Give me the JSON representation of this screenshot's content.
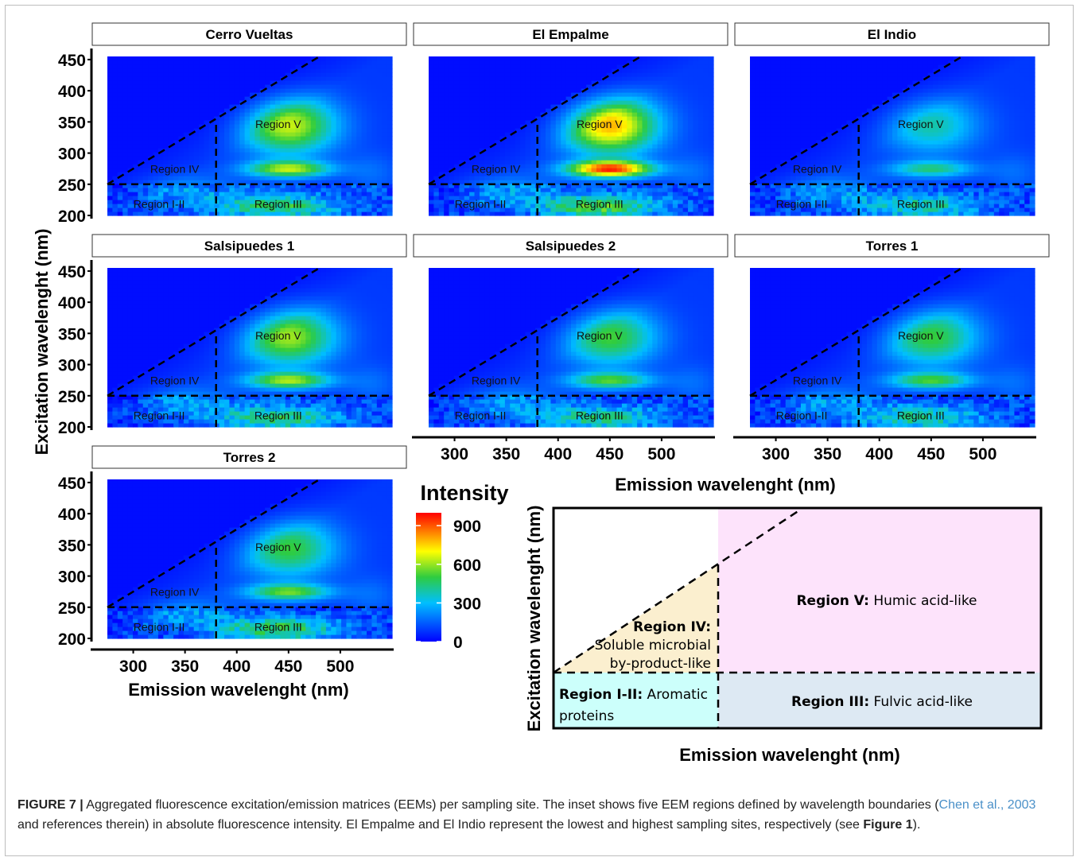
{
  "chart_data": [
    {
      "type": "heatmap",
      "panels": [
        {
          "title": "Cerro Vueltas",
          "peak_v": 560,
          "peak_low": 520,
          "peak_iii": 380
        },
        {
          "title": "El Empalme",
          "peak_v": 700,
          "peak_low": 830,
          "peak_iii": 430
        },
        {
          "title": "El Indio",
          "peak_v": 300,
          "peak_low": 330,
          "peak_iii": 320
        },
        {
          "title": "Salsipuedes 1",
          "peak_v": 520,
          "peak_low": 500,
          "peak_iii": 360
        },
        {
          "title": "Salsipuedes 2",
          "peak_v": 430,
          "peak_low": 420,
          "peak_iii": 320
        },
        {
          "title": "Torres 1",
          "peak_v": 420,
          "peak_low": 410,
          "peak_iii": 320
        },
        {
          "title": "Torres 2",
          "peak_v": 420,
          "peak_low": 450,
          "peak_iii": 400
        }
      ],
      "x_ticks": [
        300,
        350,
        400,
        450,
        500
      ],
      "y_ticks": [
        200,
        250,
        300,
        350,
        400,
        450
      ],
      "xlim": [
        275,
        550
      ],
      "ylim": [
        200,
        455
      ],
      "xlabel": "Emission wavelenght (nm)",
      "ylabel": "Excitation wavelenght (nm)",
      "boundaries": {
        "excitation": 250,
        "emission": 380
      },
      "region_labels": {
        "r5": "Region V",
        "r4": "Region IV",
        "r12": "Region I-II",
        "r3": "Region III"
      },
      "colorbar": {
        "title": "Intensity",
        "ticks": [
          900,
          600,
          300,
          0
        ],
        "range": [
          0,
          1000
        ]
      },
      "colors": {
        "low": "#0000ff",
        "mid_low": "#00bfff",
        "mid": "#2ecc40",
        "mid_high": "#ffff00",
        "high": "#ff0000"
      }
    }
  ],
  "inset": {
    "xlabel": "Emission wavelenght (nm)",
    "ylabel": "Excitation wavelenght (nm)",
    "regions": [
      {
        "bold": "Region V:",
        "text": " Humic acid-like",
        "color": "#fde3fb"
      },
      {
        "bold": "Region IV:",
        "line2": "Soluble microbial",
        "line3": "by-product-like",
        "color": "#fbefcf"
      },
      {
        "bold": "Region I-II:",
        "text": " Aromatic",
        "line2": "proteins",
        "color": "#ccfffb"
      },
      {
        "bold": "Region III:",
        "text": " Fulvic acid-like",
        "color": "#dde9f3"
      }
    ]
  },
  "caption": {
    "label": "FIGURE 7 |",
    "text1": " Aggregated fluorescence excitation/emission matrices (EEMs) per sampling site. The inset shows five EEM regions defined by wavelength boundaries (",
    "ref": "Chen et al., 2003",
    "text2": " and references therein) in absolute fluorescence intensity. El Empalme and El Indio represent the lowest and highest sampling sites, respectively (see ",
    "fig_ref": "Figure 1",
    "text3": ")."
  }
}
